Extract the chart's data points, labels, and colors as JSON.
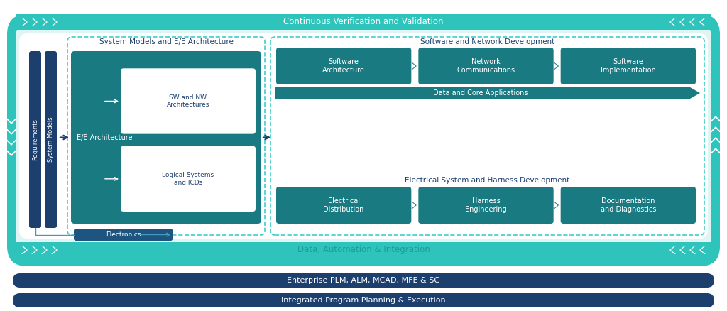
{
  "bg_color": "#ffffff",
  "teal_outer": "#2ec4bb",
  "teal_outer_dark": "#1a9e96",
  "teal_inner_bg": "#e8f8f7",
  "teal_mid": "#1d7a82",
  "teal_block": "#1a7a82",
  "navy": "#1c3f6e",
  "navy_light": "#1d5580",
  "teal_banner": "#2ec4bb",
  "teal_chevron": "#2ec4bb",
  "dashed_color": "#3ecfca",
  "text_dark": "#1c3f6e",
  "text_teal_label": "#1a9e96",
  "white": "#ffffff",
  "title": "Continuous Verification and Validation",
  "bottom_banner1": "Data, Automation & Integration",
  "bottom_bar1": "Enterprise PLM, ALM, MCAD, MFE & SC",
  "bottom_bar2": "Integrated Program Planning & Execution",
  "section_left_title": "System Models and E/E Architecture",
  "section_right_top_title": "Software and Network Development",
  "section_right_bot_title": "Electrical System and Harness Development",
  "middle_bar_text": "Data and Core Applications",
  "ee_text": "E/E Architecture",
  "electronics_text": "Electronics",
  "req_text": "Requirements",
  "sys_models_text": "System Models",
  "sw_nw_text": "SW and NW\nArchitectures",
  "log_sys_text": "Logical Systems\nand ICDs",
  "soft_arch_text": "Software\nArchitecture",
  "net_comm_text": "Network\nCommunications",
  "soft_impl_text": "Software\nImplementation",
  "elec_dist_text": "Electrical\nDistribution",
  "harness_text": "Harness\nEngineering",
  "doc_diag_text": "Documentation\nand Diagnostics"
}
